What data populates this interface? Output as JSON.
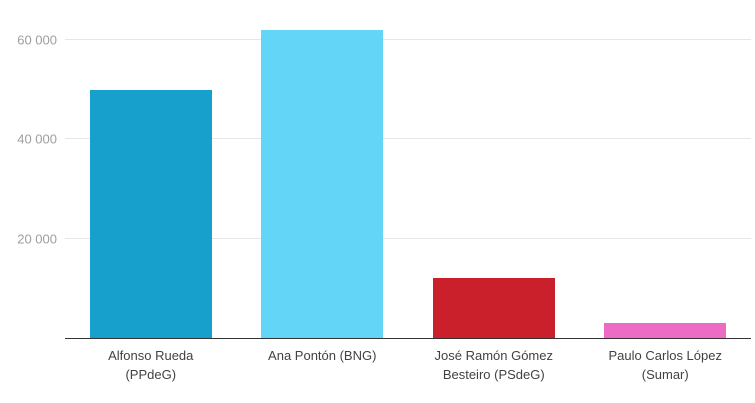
{
  "chart_data": {
    "type": "bar",
    "title": "",
    "xlabel": "",
    "ylabel": "",
    "legend": "none",
    "grid": true,
    "ylim": [
      0,
      66000
    ],
    "categories": [
      "Alfonso Rueda (PPdeG)",
      "Ana Pontón (BNG)",
      "José Ramón Gómez Besteiro (PSdeG)",
      "Paulo Carlos López (Sumar)"
    ],
    "category_label_lines": [
      [
        "Alfonso Rueda",
        "(PPdeG)"
      ],
      [
        "Ana Pontón (BNG)"
      ],
      [
        "José Ramón Gómez",
        "Besteiro (PSdeG)"
      ],
      [
        "Paulo Carlos López",
        "(Sumar)"
      ]
    ],
    "values": [
      50000,
      62000,
      12000,
      3000
    ],
    "bar_colors": [
      "#18a0cd",
      "#63d6f7",
      "#c9202b",
      "#ec6bc4"
    ],
    "yticks": [
      {
        "value": 20000,
        "label": "20 000"
      },
      {
        "value": 40000,
        "label": "40 000"
      },
      {
        "value": 60000,
        "label": "60 000"
      }
    ]
  },
  "colors": {
    "background": "#ffffff",
    "gridline": "#e6e6e6",
    "axis_line": "#333333",
    "ytick_label": "#9e9e9e",
    "category_label": "#424242"
  }
}
